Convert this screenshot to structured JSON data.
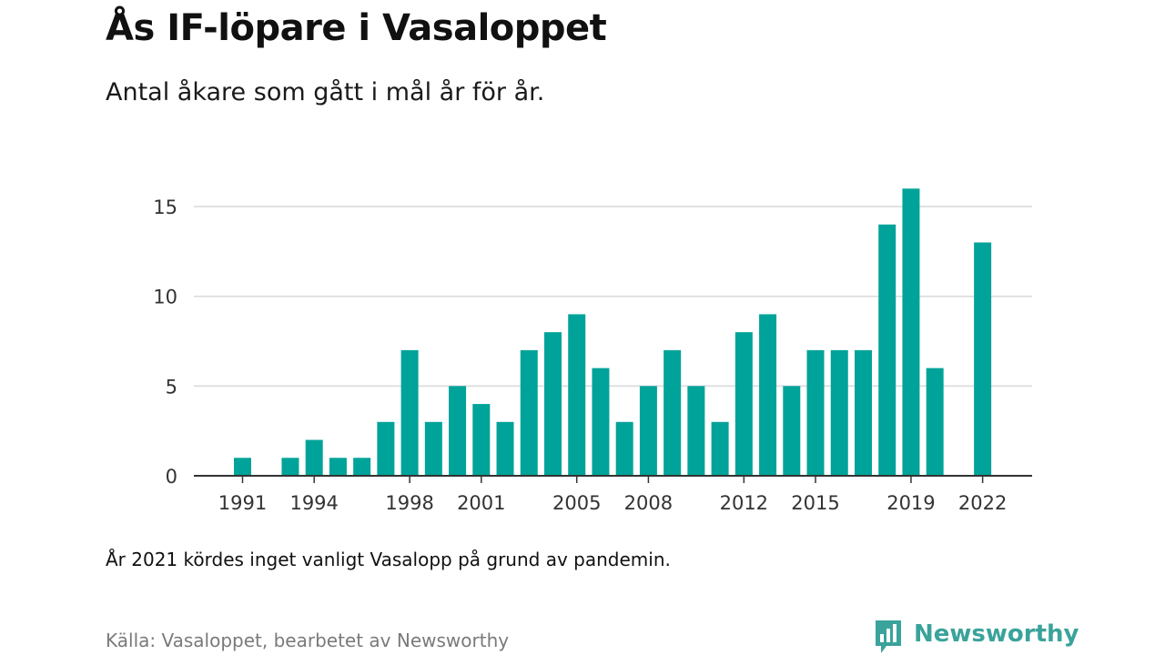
{
  "header": {
    "title": "Ås IF-löpare i Vasaloppet",
    "subtitle": "Antal åkare som gått i mål år för år."
  },
  "footer": {
    "note": "År 2021 kördes inget vanligt Vasalopp på grund av pandemin.",
    "source": "Källa: Vasaloppet, bearbetet av Newsworthy",
    "brand": "Newsworthy"
  },
  "colors": {
    "bar": "#00a399",
    "grid": "#d9d9d9",
    "axis": "#333333",
    "brand": "#3aa39b"
  },
  "logo_icon": "bar-chart-speech-bubble-icon",
  "chart_data": {
    "type": "bar",
    "title": "",
    "xlabel": "",
    "ylabel": "",
    "categories": [
      1991,
      1992,
      1993,
      1994,
      1995,
      1996,
      1997,
      1998,
      1999,
      2000,
      2001,
      2002,
      2003,
      2004,
      2005,
      2006,
      2007,
      2008,
      2009,
      2010,
      2011,
      2012,
      2013,
      2014,
      2015,
      2016,
      2017,
      2018,
      2019,
      2020,
      2021,
      2022
    ],
    "values": [
      1,
      0,
      1,
      2,
      1,
      1,
      3,
      7,
      3,
      5,
      4,
      3,
      7,
      8,
      9,
      6,
      3,
      5,
      7,
      5,
      3,
      8,
      9,
      5,
      7,
      7,
      7,
      14,
      16,
      6,
      0,
      13
    ],
    "x_tick_labels": [
      "1991",
      "1994",
      "1998",
      "2001",
      "2005",
      "2008",
      "2012",
      "2015",
      "2019",
      "2022"
    ],
    "y_ticks": [
      0,
      5,
      10,
      15
    ],
    "ylim": [
      0,
      16
    ],
    "grid": true,
    "legend": "none"
  }
}
